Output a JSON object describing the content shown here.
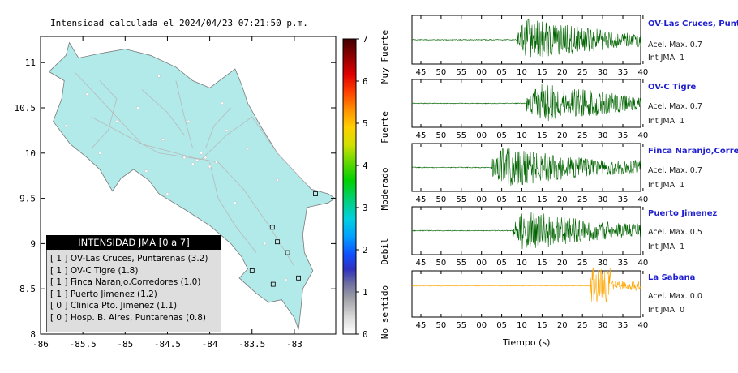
{
  "map": {
    "title": "Intensidad calculada el 2024/04/23_07:21:50_p.m.",
    "x_ticks": [
      "-86",
      "-85.5",
      "-85",
      "-84.5",
      "-84",
      "-83.5",
      "-83"
    ],
    "y_ticks": [
      "11",
      "10.5",
      "10",
      "9.5",
      "9",
      "8.5",
      "8"
    ],
    "land_color": "#b2eaea"
  },
  "colorbar": {
    "ticks": [
      "0",
      "1",
      "2",
      "3",
      "4",
      "5",
      "6",
      "7"
    ],
    "labels": [
      "No sentido",
      "Debil",
      "Moderado",
      "Fuerte",
      "Muy Fuerte"
    ]
  },
  "legend": {
    "title": "INTENSIDAD JMA [0 a 7]",
    "rows": [
      "[ 1 ]  OV-Las Cruces, Puntarenas (3.2)",
      "[ 1 ]  OV-C Tigre (1.8)",
      "[ 1 ]  Finca Naranjo,Corredores (1.0)",
      "[ 1 ]  Puerto Jimenez (1.2)",
      "[ 0 ]  Clinica Pto. Jimenez (1.1)",
      "[ 0 ]  Hosp. B. Aires, Puntarenas (0.8)"
    ]
  },
  "stations": [
    {
      "name": "OV-Las Cruces, Puntarenas",
      "accel": "Acel. Max. 0.7",
      "jma": "Int JMA: 1",
      "color": "#006400",
      "onset": 0.46
    },
    {
      "name": "OV-C Tigre",
      "accel": "Acel. Max. 0.7",
      "jma": "Int JMA: 1",
      "color": "#006400",
      "onset": 0.5
    },
    {
      "name": "Finca Naranjo,Corredores",
      "accel": "Acel. Max. 0.7",
      "jma": "Int JMA: 1",
      "color": "#006400",
      "onset": 0.35
    },
    {
      "name": "Puerto Jimenez",
      "accel": "Acel. Max. 0.5",
      "jma": "Int JMA: 1",
      "color": "#006400",
      "onset": 0.44
    },
    {
      "name": "La Sabana",
      "accel": "Acel. Max. 0.0",
      "jma": "Int JMA: 0",
      "color": "#ffa500",
      "onset": 0.78
    }
  ],
  "time_ticks": [
    "45",
    "50",
    "55",
    "00",
    "05",
    "10",
    "15",
    "20",
    "25",
    "30",
    "35",
    "40"
  ],
  "time_label": "Tiempo (s)",
  "chart_data": [
    {
      "type": "heatmap",
      "title": "Intensidad calculada el 2024/04/23_07:21:50_p.m.",
      "xlim": [
        -86,
        -82.5
      ],
      "ylim": [
        8,
        11.3
      ],
      "xlabel": "",
      "ylabel": "",
      "colorbar_range": [
        0,
        7
      ],
      "colorbar_labels": [
        "No sentido",
        "Debil",
        "Moderado",
        "Fuerte",
        "Muy Fuerte"
      ]
    },
    {
      "type": "line",
      "title": "",
      "xlabel": "Tiempo (s)",
      "x_tick_labels": [
        "45",
        "50",
        "55",
        "00",
        "05",
        "10",
        "15",
        "20",
        "25",
        "30",
        "35",
        "40"
      ],
      "series": [
        {
          "name": "OV-Las Cruces, Puntarenas",
          "peak_accel": 0.7,
          "jma": 1
        },
        {
          "name": "OV-C Tigre",
          "peak_accel": 0.7,
          "jma": 1
        },
        {
          "name": "Finca Naranjo,Corredores",
          "peak_accel": 0.7,
          "jma": 1
        },
        {
          "name": "Puerto Jimenez",
          "peak_accel": 0.5,
          "jma": 1
        },
        {
          "name": "La Sabana",
          "peak_accel": 0.0,
          "jma": 0
        }
      ]
    }
  ]
}
